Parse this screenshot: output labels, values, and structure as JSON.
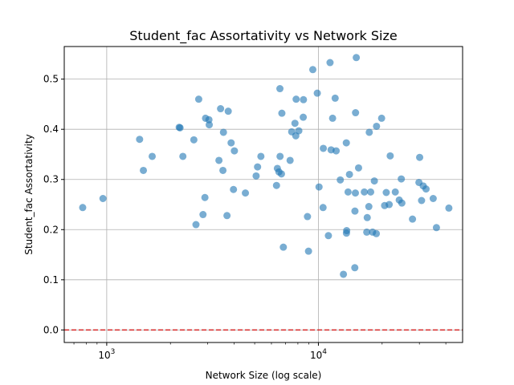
{
  "chart_data": {
    "type": "scatter",
    "title": "Student_fac Assortativity vs Network Size",
    "xlabel": "Network Size (log scale)",
    "ylabel": "Student_fac Assortativity",
    "x_scale": "log",
    "xlim": [
      630,
      48000
    ],
    "ylim": [
      -0.025,
      0.565
    ],
    "x_ticks": [
      {
        "value": 1000,
        "base": "10",
        "exp": "3"
      },
      {
        "value": 10000,
        "base": "10",
        "exp": "4"
      }
    ],
    "y_ticks": [
      {
        "value": 0.0,
        "label": "0.0"
      },
      {
        "value": 0.1,
        "label": "0.1"
      },
      {
        "value": 0.2,
        "label": "0.2"
      },
      {
        "value": 0.3,
        "label": "0.3"
      },
      {
        "value": 0.4,
        "label": "0.4"
      },
      {
        "value": 0.5,
        "label": "0.5"
      }
    ],
    "grid": true,
    "marker_color": "#1f77b4",
    "reference_line": {
      "y": 0.0,
      "color": "#d62728",
      "style": "dashed"
    },
    "points": [
      {
        "x": 770,
        "y": 0.244
      },
      {
        "x": 960,
        "y": 0.262
      },
      {
        "x": 1430,
        "y": 0.38
      },
      {
        "x": 1490,
        "y": 0.318
      },
      {
        "x": 1640,
        "y": 0.346
      },
      {
        "x": 2200,
        "y": 0.404
      },
      {
        "x": 2220,
        "y": 0.403
      },
      {
        "x": 2290,
        "y": 0.346
      },
      {
        "x": 2580,
        "y": 0.379
      },
      {
        "x": 2640,
        "y": 0.21
      },
      {
        "x": 2720,
        "y": 0.46
      },
      {
        "x": 2850,
        "y": 0.23
      },
      {
        "x": 2910,
        "y": 0.264
      },
      {
        "x": 2930,
        "y": 0.422
      },
      {
        "x": 3040,
        "y": 0.419
      },
      {
        "x": 3050,
        "y": 0.409
      },
      {
        "x": 3390,
        "y": 0.338
      },
      {
        "x": 3450,
        "y": 0.441
      },
      {
        "x": 3540,
        "y": 0.318
      },
      {
        "x": 3560,
        "y": 0.394
      },
      {
        "x": 3700,
        "y": 0.228
      },
      {
        "x": 3750,
        "y": 0.436
      },
      {
        "x": 3870,
        "y": 0.373
      },
      {
        "x": 3970,
        "y": 0.28
      },
      {
        "x": 4010,
        "y": 0.357
      },
      {
        "x": 4520,
        "y": 0.273
      },
      {
        "x": 5080,
        "y": 0.307
      },
      {
        "x": 5160,
        "y": 0.325
      },
      {
        "x": 5350,
        "y": 0.346
      },
      {
        "x": 6340,
        "y": 0.288
      },
      {
        "x": 6400,
        "y": 0.322
      },
      {
        "x": 6510,
        "y": 0.315
      },
      {
        "x": 6580,
        "y": 0.481
      },
      {
        "x": 6590,
        "y": 0.346
      },
      {
        "x": 6690,
        "y": 0.311
      },
      {
        "x": 6720,
        "y": 0.432
      },
      {
        "x": 6830,
        "y": 0.165
      },
      {
        "x": 7350,
        "y": 0.338
      },
      {
        "x": 7480,
        "y": 0.395
      },
      {
        "x": 7750,
        "y": 0.412
      },
      {
        "x": 7820,
        "y": 0.387
      },
      {
        "x": 7850,
        "y": 0.46
      },
      {
        "x": 8080,
        "y": 0.397
      },
      {
        "x": 8480,
        "y": 0.424
      },
      {
        "x": 8500,
        "y": 0.459
      },
      {
        "x": 8880,
        "y": 0.226
      },
      {
        "x": 8980,
        "y": 0.157
      },
      {
        "x": 9410,
        "y": 0.519
      },
      {
        "x": 9880,
        "y": 0.472
      },
      {
        "x": 10070,
        "y": 0.285
      },
      {
        "x": 10520,
        "y": 0.244
      },
      {
        "x": 10550,
        "y": 0.362
      },
      {
        "x": 11150,
        "y": 0.188
      },
      {
        "x": 11350,
        "y": 0.533
      },
      {
        "x": 11480,
        "y": 0.359
      },
      {
        "x": 11670,
        "y": 0.422
      },
      {
        "x": 12000,
        "y": 0.462
      },
      {
        "x": 12130,
        "y": 0.357
      },
      {
        "x": 12690,
        "y": 0.299
      },
      {
        "x": 13130,
        "y": 0.111
      },
      {
        "x": 13550,
        "y": 0.373
      },
      {
        "x": 13570,
        "y": 0.193
      },
      {
        "x": 13600,
        "y": 0.198
      },
      {
        "x": 13810,
        "y": 0.275
      },
      {
        "x": 14020,
        "y": 0.31
      },
      {
        "x": 14860,
        "y": 0.124
      },
      {
        "x": 14880,
        "y": 0.237
      },
      {
        "x": 14950,
        "y": 0.273
      },
      {
        "x": 14980,
        "y": 0.433
      },
      {
        "x": 15100,
        "y": 0.543
      },
      {
        "x": 15480,
        "y": 0.323
      },
      {
        "x": 16480,
        "y": 0.275
      },
      {
        "x": 16920,
        "y": 0.195
      },
      {
        "x": 17010,
        "y": 0.224
      },
      {
        "x": 17310,
        "y": 0.246
      },
      {
        "x": 17390,
        "y": 0.394
      },
      {
        "x": 17660,
        "y": 0.275
      },
      {
        "x": 18030,
        "y": 0.195
      },
      {
        "x": 18380,
        "y": 0.297
      },
      {
        "x": 18780,
        "y": 0.192
      },
      {
        "x": 18820,
        "y": 0.406
      },
      {
        "x": 19890,
        "y": 0.422
      },
      {
        "x": 20550,
        "y": 0.248
      },
      {
        "x": 20920,
        "y": 0.274
      },
      {
        "x": 21600,
        "y": 0.25
      },
      {
        "x": 21840,
        "y": 0.347
      },
      {
        "x": 23080,
        "y": 0.275
      },
      {
        "x": 24090,
        "y": 0.259
      },
      {
        "x": 24640,
        "y": 0.301
      },
      {
        "x": 24790,
        "y": 0.253
      },
      {
        "x": 27830,
        "y": 0.221
      },
      {
        "x": 29850,
        "y": 0.294
      },
      {
        "x": 30090,
        "y": 0.344
      },
      {
        "x": 30720,
        "y": 0.258
      },
      {
        "x": 31280,
        "y": 0.287
      },
      {
        "x": 32250,
        "y": 0.281
      },
      {
        "x": 34860,
        "y": 0.262
      },
      {
        "x": 36110,
        "y": 0.204
      },
      {
        "x": 41340,
        "y": 0.243
      }
    ]
  }
}
